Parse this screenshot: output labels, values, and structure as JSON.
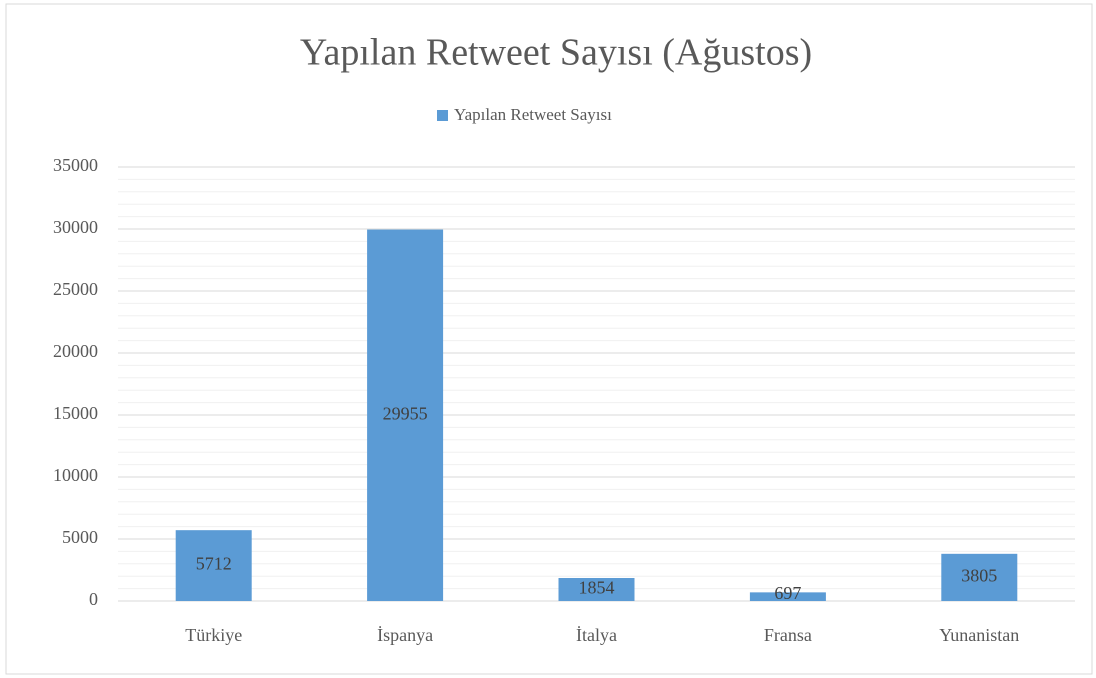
{
  "chart_data": {
    "type": "bar",
    "title": "Yapılan Retweet Sayısı (Ağustos)",
    "categories": [
      "Türkiye",
      "İspanya",
      "İtalya",
      "Fransa",
      "Yunanistan"
    ],
    "series": [
      {
        "name": "Yapılan Retweet Sayısı",
        "color": "#5b9bd5",
        "values": [
          5712,
          29955,
          1854,
          697,
          3805
        ]
      }
    ],
    "ylim": [
      0,
      35000
    ],
    "yticks": [
      0,
      5000,
      10000,
      15000,
      20000,
      25000,
      30000,
      35000
    ],
    "grid": true,
    "legend": "top"
  }
}
